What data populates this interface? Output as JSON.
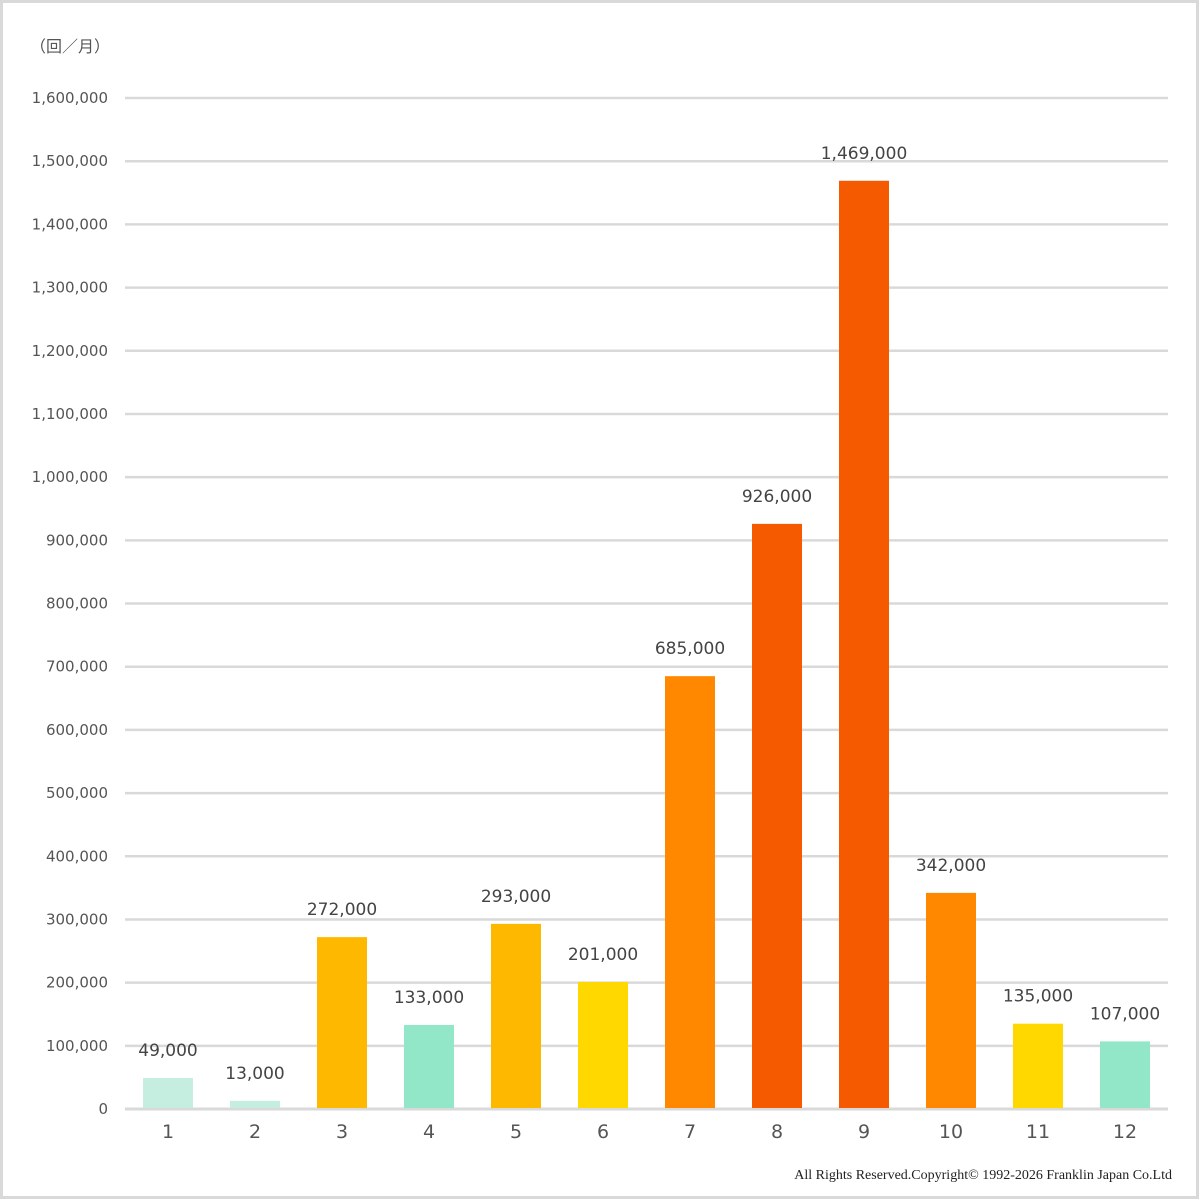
{
  "chart_data": {
    "type": "bar",
    "title": "",
    "ylabel": "（回／月）",
    "xlabel": "",
    "categories": [
      "1",
      "2",
      "3",
      "4",
      "5",
      "6",
      "7",
      "8",
      "9",
      "10",
      "11",
      "12"
    ],
    "values": [
      49000,
      13000,
      272000,
      133000,
      293000,
      201000,
      685000,
      926000,
      1469000,
      342000,
      135000,
      107000
    ],
    "data_labels": [
      "49,000",
      "13,000",
      "272,000",
      "133,000",
      "293,000",
      "201,000",
      "685,000",
      "926,000",
      "1,469,000",
      "342,000",
      "135,000",
      "107,000"
    ],
    "colors": [
      "#c5eee0",
      "#c5eee0",
      "#ffb800",
      "#93e7c9",
      "#ffb800",
      "#ffd800",
      "#ff8800",
      "#f55a00",
      "#f55a00",
      "#ff8800",
      "#ffd800",
      "#93e7c9"
    ],
    "ylim": [
      0,
      1600000
    ],
    "yticks": [
      0,
      100000,
      200000,
      300000,
      400000,
      500000,
      600000,
      700000,
      800000,
      900000,
      1000000,
      1100000,
      1200000,
      1300000,
      1400000,
      1500000,
      1600000
    ],
    "ytick_labels": [
      "0",
      "100,000",
      "200,000",
      "300,000",
      "400,000",
      "500,000",
      "600,000",
      "700,000",
      "800,000",
      "900,000",
      "1,000,000",
      "1,100,000",
      "1,200,000",
      "1,300,000",
      "1,400,000",
      "1,500,000",
      "1,600,000"
    ],
    "grid": true,
    "legend": "none"
  },
  "copyright": "All  Rights  Reserved.Copyright©  1992-2026 Franklin  Japan  Co.Ltd"
}
